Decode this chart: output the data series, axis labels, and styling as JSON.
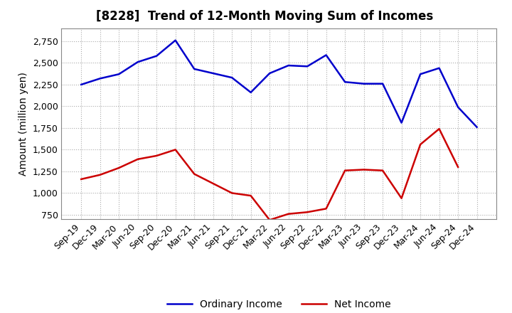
{
  "title": "[8228]  Trend of 12-Month Moving Sum of Incomes",
  "ylabel": "Amount (million yen)",
  "x_labels": [
    "Sep-19",
    "Dec-19",
    "Mar-20",
    "Jun-20",
    "Sep-20",
    "Dec-20",
    "Mar-21",
    "Jun-21",
    "Sep-21",
    "Dec-21",
    "Mar-22",
    "Jun-22",
    "Sep-22",
    "Dec-22",
    "Mar-23",
    "Jun-23",
    "Sep-23",
    "Dec-23",
    "Mar-24",
    "Jun-24",
    "Sep-24",
    "Dec-24"
  ],
  "ordinary_income": [
    2250,
    2320,
    2370,
    2510,
    2580,
    2760,
    2430,
    2380,
    2330,
    2160,
    2380,
    2470,
    2460,
    2590,
    2280,
    2260,
    2260,
    1810,
    2370,
    2440,
    1990,
    1760
  ],
  "net_income": [
    1160,
    1210,
    1290,
    1390,
    1430,
    1500,
    1220,
    1110,
    1000,
    970,
    690,
    760,
    780,
    820,
    1260,
    1270,
    1260,
    940,
    1560,
    1740,
    1300,
    null
  ],
  "ordinary_color": "#0000cc",
  "net_color": "#cc0000",
  "background_color": "#ffffff",
  "grid_color": "#aaaaaa",
  "ylim_min": 700,
  "ylim_max": 2900,
  "yticks": [
    750,
    1000,
    1250,
    1500,
    1750,
    2000,
    2250,
    2500,
    2750
  ],
  "legend_labels": [
    "Ordinary Income",
    "Net Income"
  ],
  "title_fontsize": 12,
  "axis_fontsize": 10,
  "tick_fontsize": 9
}
